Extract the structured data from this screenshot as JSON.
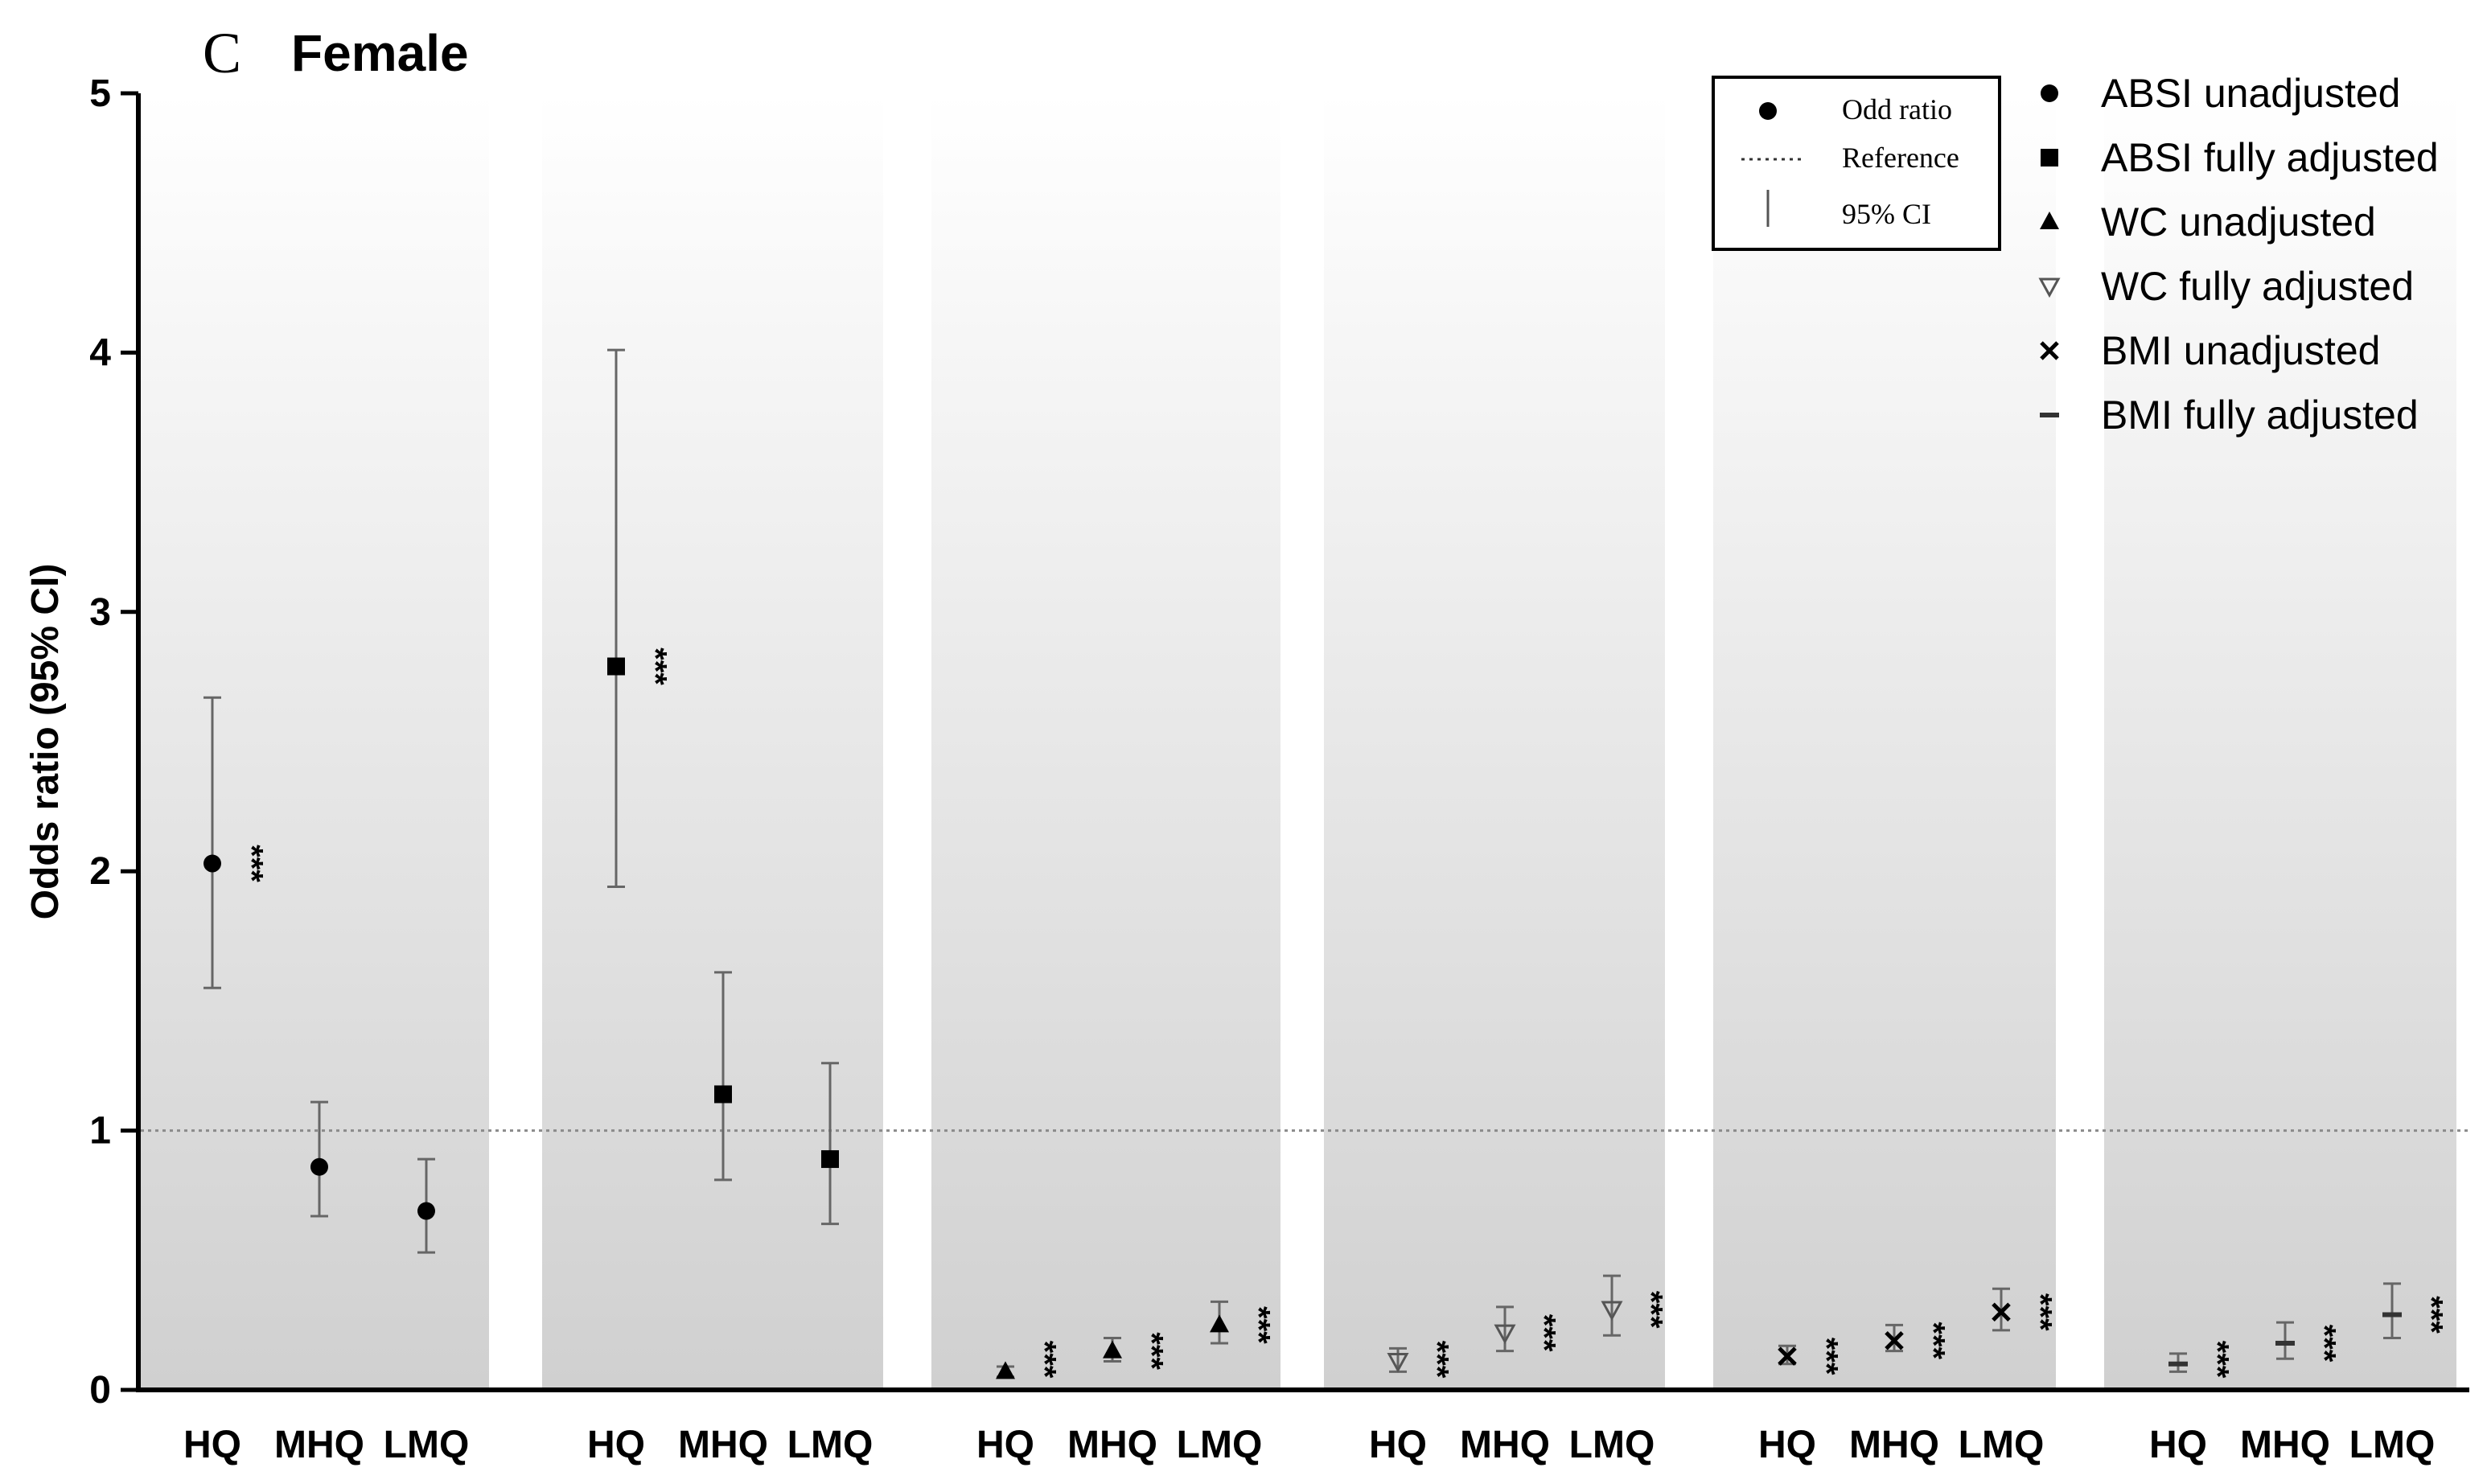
{
  "panel_letter": "C",
  "panel_title": "Female",
  "chart_data": {
    "type": "scatter",
    "subtype": "odds-ratio-forest-plot",
    "ylabel": "Odds ratio (95% CI)",
    "ylim": [
      0,
      5
    ],
    "yticks": [
      "0",
      "1",
      "2",
      "3",
      "4",
      "5"
    ],
    "reference_line": 1,
    "significance_label": "***",
    "groups": [
      {
        "name": "ABSI unadjusted",
        "marker": "circle",
        "color": "#000000",
        "points": [
          {
            "category": "HQ",
            "or": 2.03,
            "lo": 1.55,
            "hi": 2.67,
            "sig": true
          },
          {
            "category": "MHQ",
            "or": 0.86,
            "lo": 0.67,
            "hi": 1.11,
            "sig": false
          },
          {
            "category": "LMQ",
            "or": 0.69,
            "lo": 0.53,
            "hi": 0.89,
            "sig": false
          }
        ]
      },
      {
        "name": "ABSI fully adjusted",
        "marker": "square",
        "color": "#000000",
        "points": [
          {
            "category": "HQ",
            "or": 2.79,
            "lo": 1.94,
            "hi": 4.01,
            "sig": true
          },
          {
            "category": "MHQ",
            "or": 1.14,
            "lo": 0.81,
            "hi": 1.61,
            "sig": false
          },
          {
            "category": "LMQ",
            "or": 0.89,
            "lo": 0.64,
            "hi": 1.26,
            "sig": false
          }
        ]
      },
      {
        "name": "WC unadjusted",
        "marker": "triangle",
        "color": "#000000",
        "points": [
          {
            "category": "HQ",
            "or": 0.07,
            "lo": 0.05,
            "hi": 0.09,
            "sig": true
          },
          {
            "category": "MHQ",
            "or": 0.15,
            "lo": 0.11,
            "hi": 0.2,
            "sig": true
          },
          {
            "category": "LMQ",
            "or": 0.25,
            "lo": 0.18,
            "hi": 0.34,
            "sig": true
          }
        ]
      },
      {
        "name": "WC fully adjusted",
        "marker": "triangle-down",
        "color": "#555555",
        "points": [
          {
            "category": "HQ",
            "or": 0.11,
            "lo": 0.07,
            "hi": 0.16,
            "sig": true
          },
          {
            "category": "MHQ",
            "or": 0.22,
            "lo": 0.15,
            "hi": 0.32,
            "sig": true
          },
          {
            "category": "LMQ",
            "or": 0.31,
            "lo": 0.21,
            "hi": 0.44,
            "sig": true
          }
        ]
      },
      {
        "name": "BMI unadjusted",
        "marker": "x",
        "color": "#000000",
        "points": [
          {
            "category": "HQ",
            "or": 0.13,
            "lo": 0.1,
            "hi": 0.17,
            "sig": true
          },
          {
            "category": "MHQ",
            "or": 0.19,
            "lo": 0.15,
            "hi": 0.25,
            "sig": true
          },
          {
            "category": "LMQ",
            "or": 0.3,
            "lo": 0.23,
            "hi": 0.39,
            "sig": true
          }
        ]
      },
      {
        "name": "BMI fully adjusted",
        "marker": "dash",
        "color": "#333333",
        "points": [
          {
            "category": "HQ",
            "or": 0.1,
            "lo": 0.07,
            "hi": 0.14,
            "sig": true
          },
          {
            "category": "MHQ",
            "or": 0.18,
            "lo": 0.12,
            "hi": 0.26,
            "sig": true
          },
          {
            "category": "LMQ",
            "or": 0.29,
            "lo": 0.2,
            "hi": 0.41,
            "sig": true
          }
        ]
      }
    ],
    "legend_key": [
      {
        "symbol": "circle",
        "label": "Odd ratio"
      },
      {
        "symbol": "dotted-line",
        "label": "Reference"
      },
      {
        "symbol": "vertical-bar",
        "label": "95% CI"
      }
    ],
    "legend_placement": "top-right",
    "grid": false,
    "panel_background": "gradient white-to-gray"
  }
}
